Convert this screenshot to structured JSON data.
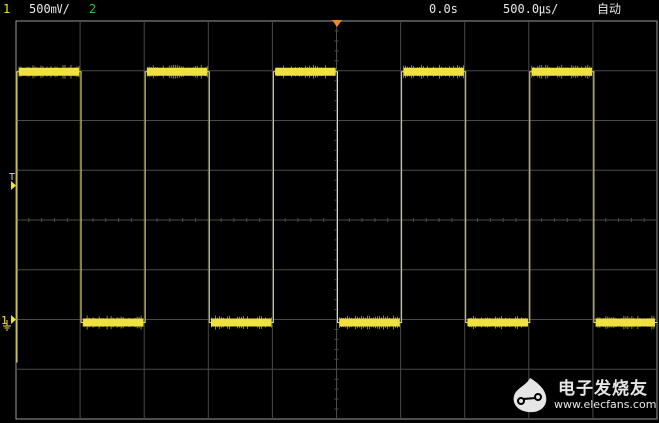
{
  "header": {
    "channel1_label": "1",
    "channel1_scale": "500㎷/",
    "channel2_label": "2",
    "time_delay": "0.0s",
    "time_scale": "500.0㎲/",
    "trigger_mode": "自动"
  },
  "markers": {
    "trigger_level_label": "T",
    "channel1_ground_label": "1"
  },
  "colors": {
    "channel1": "#f0e040",
    "channel2": "#30c040",
    "grid": "#4a4a4a",
    "trigger_marker": "#f08a20"
  },
  "trace": {
    "waveform": "square",
    "high_level_div": 3,
    "low_level_div": -2,
    "period_div": 2,
    "duty_percent": 50
  },
  "watermark": {
    "name": "电子发烧友",
    "url": "www.elecfans.com"
  }
}
